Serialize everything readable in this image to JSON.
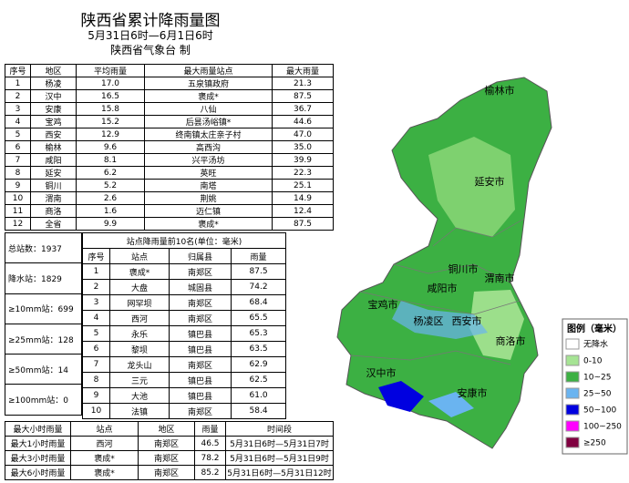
{
  "header": {
    "title": "陕西省累计降雨量图",
    "subtitle": "5月31日6时—6月1日6时",
    "issuer": "陕西省气象台 制"
  },
  "region_table": {
    "columns": [
      "序号",
      "地区",
      "平均雨量",
      "最大雨量站点",
      "最大雨量"
    ],
    "rows": [
      [
        "1",
        "杨凌",
        "17.0",
        "五泉镇政府",
        "21.3"
      ],
      [
        "2",
        "汉中",
        "16.5",
        "褒成*",
        "87.5"
      ],
      [
        "3",
        "安康",
        "15.8",
        "八仙",
        "36.7"
      ],
      [
        "4",
        "宝鸡",
        "15.2",
        "后昙汤峪镇*",
        "44.6"
      ],
      [
        "5",
        "西安",
        "12.9",
        "终南镇太庄亲子村",
        "47.0"
      ],
      [
        "6",
        "榆林",
        "9.6",
        "高西沟",
        "35.0"
      ],
      [
        "7",
        "咸阳",
        "8.1",
        "兴平汤坊",
        "39.9"
      ],
      [
        "8",
        "延安",
        "6.2",
        "英旺",
        "22.3"
      ],
      [
        "9",
        "铜川",
        "5.2",
        "南塔",
        "25.1"
      ],
      [
        "10",
        "渭南",
        "2.6",
        "荆姚",
        "14.9"
      ],
      [
        "11",
        "商洛",
        "1.6",
        "迈仁镇",
        "12.4"
      ],
      [
        "12",
        "全省",
        "9.9",
        "褒成*",
        "87.5"
      ]
    ]
  },
  "stats": [
    "总站数：1937",
    "降水站：1829",
    "≥10mm站：699",
    "≥25mm站：128",
    "≥50mm站：14",
    "≥100mm站：0"
  ],
  "top10_table": {
    "title": "站点降雨量前10名(单位：毫米)",
    "columns": [
      "序号",
      "站点",
      "归属县",
      "雨量"
    ],
    "rows": [
      [
        "1",
        "褒成*",
        "南郑区",
        "87.5"
      ],
      [
        "2",
        "大盘",
        "城固县",
        "74.2"
      ],
      [
        "3",
        "网罕坝",
        "南郑区",
        "68.4"
      ],
      [
        "4",
        "西河",
        "南郑区",
        "65.5"
      ],
      [
        "5",
        "永乐",
        "镇巴县",
        "65.3"
      ],
      [
        "6",
        "黎坝",
        "镇巴县",
        "63.5"
      ],
      [
        "7",
        "龙头山",
        "南郑区",
        "62.9"
      ],
      [
        "8",
        "三元",
        "镇巴县",
        "62.5"
      ],
      [
        "9",
        "大池",
        "镇巴县",
        "61.0"
      ],
      [
        "10",
        "法镇",
        "南郑区",
        "58.4"
      ]
    ]
  },
  "hourly_table": {
    "columns": [
      "最大小时雨量",
      "站点",
      "地区",
      "雨量",
      "时间段"
    ],
    "rows": [
      [
        "最大1小时雨量",
        "西河",
        "南郑区",
        "46.5",
        "5月31日6时—5月31日7时"
      ],
      [
        "最大3小时雨量",
        "褒成*",
        "南郑区",
        "78.2",
        "5月31日6时—5月31日9时"
      ],
      [
        "最大6小时雨量",
        "褒成*",
        "南郑区",
        "85.2",
        "5月31日6时—5月31日12时"
      ]
    ]
  },
  "map": {
    "labels": [
      "榆林市",
      "延安市",
      "铜川市",
      "渭南市",
      "咸阳市",
      "宝鸡市",
      "杨凌区",
      "西安市",
      "商洛市",
      "汉中市",
      "安康市"
    ]
  },
  "legend": {
    "title": "图例（毫米）",
    "items": [
      {
        "label": "无降水",
        "color": "#ffffff"
      },
      {
        "label": "0-10",
        "color": "#a6e494"
      },
      {
        "label": "10~25",
        "color": "#3cb043"
      },
      {
        "label": "25~50",
        "color": "#6ab4f0"
      },
      {
        "label": "50~100",
        "color": "#0000e0"
      },
      {
        "label": "100~250",
        "color": "#ff00ff"
      },
      {
        "label": "≥250",
        "color": "#800040"
      }
    ]
  }
}
